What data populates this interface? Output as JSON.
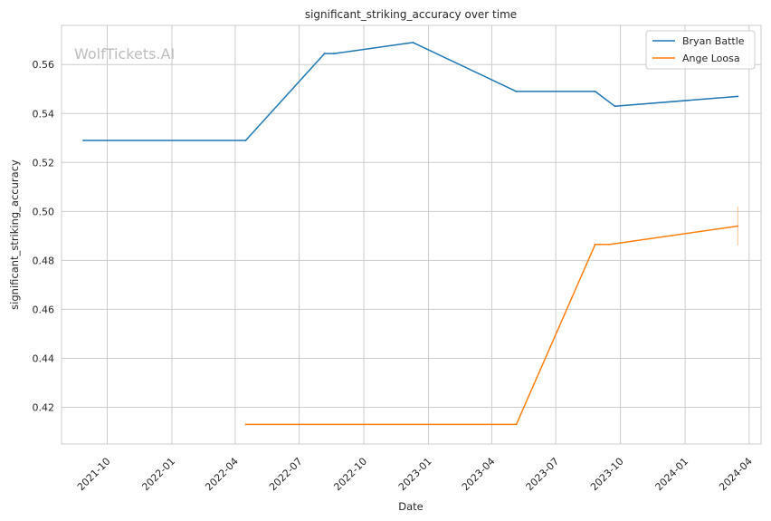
{
  "chart_data": {
    "type": "line",
    "title": "significant_striking_accuracy over time",
    "xlabel": "Date",
    "ylabel": "significant_striking_accuracy",
    "watermark": "WolfTickets.AI",
    "x_ticks": [
      "2021-10",
      "2022-01",
      "2022-04",
      "2022-07",
      "2022-10",
      "2023-01",
      "2023-04",
      "2023-07",
      "2023-10",
      "2024-01",
      "2024-04"
    ],
    "y_ticks": [
      "0.42",
      "0.44",
      "0.46",
      "0.48",
      "0.50",
      "0.52",
      "0.54",
      "0.56"
    ],
    "xlim": [
      "2021-07-28",
      "2024-04-18"
    ],
    "ylim": [
      0.405,
      0.576
    ],
    "grid": true,
    "legend_position": "top-right",
    "series": [
      {
        "name": "Bryan Battle",
        "color": "#1f77b4",
        "points": [
          {
            "x": "2021-08-28",
            "y": 0.529
          },
          {
            "x": "2022-04-16",
            "y": 0.529
          },
          {
            "x": "2022-08-06",
            "y": 0.5645
          },
          {
            "x": "2022-08-20",
            "y": 0.5645
          },
          {
            "x": "2022-12-10",
            "y": 0.569
          },
          {
            "x": "2023-05-06",
            "y": 0.549
          },
          {
            "x": "2023-08-26",
            "y": 0.549
          },
          {
            "x": "2023-09-23",
            "y": 0.543
          },
          {
            "x": "2024-03-16",
            "y": 0.547
          }
        ]
      },
      {
        "name": "Ange Loosa",
        "color": "#ff7f0e",
        "points": [
          {
            "x": "2022-04-16",
            "y": 0.413
          },
          {
            "x": "2023-05-06",
            "y": 0.413
          },
          {
            "x": "2023-08-26",
            "y": 0.4865
          },
          {
            "x": "2023-09-16",
            "y": 0.4865
          },
          {
            "x": "2024-03-16",
            "y": 0.494
          }
        ],
        "error_bar": {
          "x": "2024-03-16",
          "low": 0.486,
          "high": 0.502
        }
      }
    ]
  }
}
